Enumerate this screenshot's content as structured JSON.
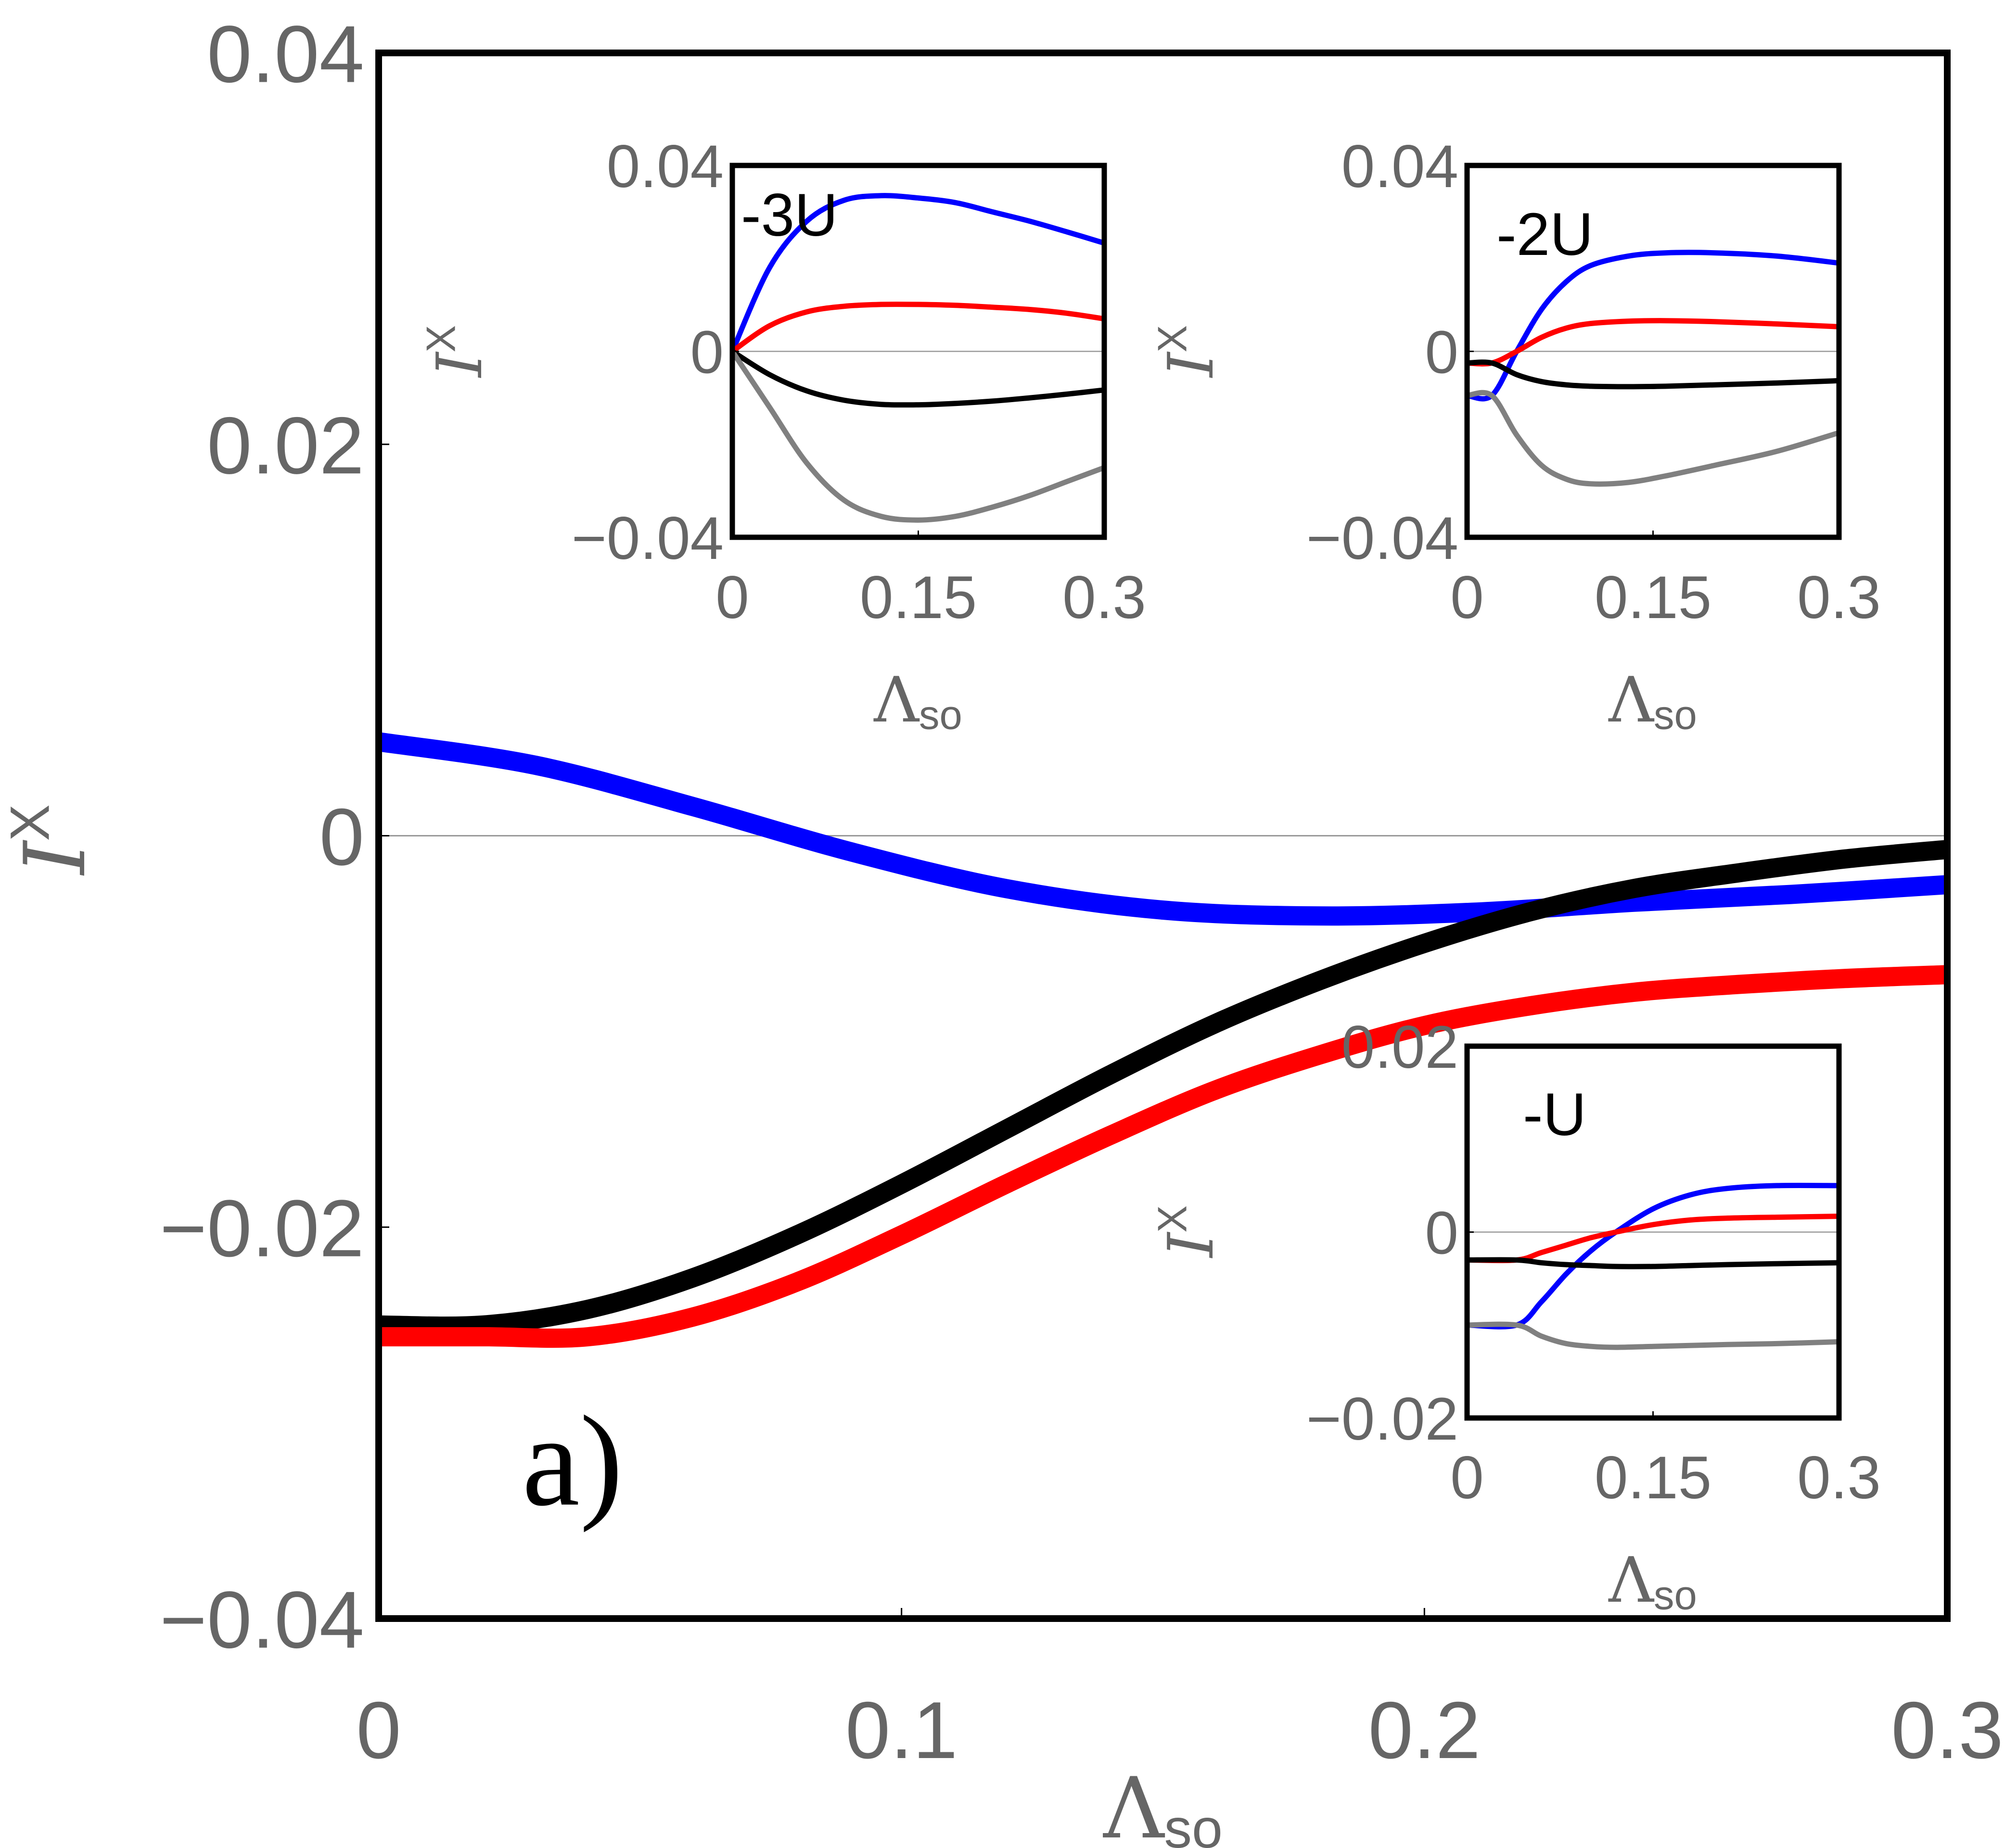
{
  "chart_data": [
    {
      "type": "line",
      "panel": "main",
      "annotation": "a)",
      "xlabel": "Λ",
      "xlabel_sub": "so",
      "ylabel": "I",
      "ylabel_sup": "X",
      "xlim": [
        0,
        0.3
      ],
      "ylim": [
        -0.04,
        0.04
      ],
      "xticks": [
        0,
        0.1,
        0.2,
        0.3
      ],
      "xtick_labels": [
        "0",
        "0.1",
        "0.2",
        "0.3"
      ],
      "yticks": [
        -0.04,
        -0.02,
        0,
        0.02,
        0.04
      ],
      "ytick_labels": [
        "−0.04",
        "−0.02",
        "0",
        "0.02",
        "0.04"
      ],
      "zero_line": true,
      "series": [
        {
          "name": "blue",
          "color": "#0000ff",
          "x": [
            0,
            0.03,
            0.06,
            0.09,
            0.12,
            0.15,
            0.18,
            0.21,
            0.24,
            0.27,
            0.3
          ],
          "y": [
            0.0048,
            0.0036,
            0.0015,
            -0.0008,
            -0.0027,
            -0.0038,
            -0.0041,
            -0.0039,
            -0.0034,
            -0.003,
            -0.0025
          ]
        },
        {
          "name": "black",
          "color": "#000000",
          "x": [
            0,
            0.02,
            0.04,
            0.06,
            0.08,
            0.1,
            0.12,
            0.14,
            0.16,
            0.18,
            0.2,
            0.22,
            0.24,
            0.26,
            0.28,
            0.3
          ],
          "y": [
            -0.025,
            -0.025,
            -0.0242,
            -0.0226,
            -0.0204,
            -0.0178,
            -0.015,
            -0.0122,
            -0.0096,
            -0.0074,
            -0.0055,
            -0.0039,
            -0.0027,
            -0.0019,
            -0.0012,
            -0.0007
          ]
        },
        {
          "name": "red",
          "color": "#ff0000",
          "x": [
            0,
            0.02,
            0.04,
            0.06,
            0.08,
            0.1,
            0.12,
            0.14,
            0.16,
            0.18,
            0.2,
            0.22,
            0.24,
            0.26,
            0.28,
            0.3
          ],
          "y": [
            -0.0256,
            -0.0256,
            -0.0256,
            -0.0246,
            -0.0228,
            -0.0204,
            -0.0178,
            -0.0153,
            -0.013,
            -0.0112,
            -0.0097,
            -0.0087,
            -0.008,
            -0.0076,
            -0.0073,
            -0.0071
          ]
        }
      ]
    },
    {
      "type": "line",
      "panel": "inset-3U",
      "annotation": "-3U",
      "xlabel": "Λ",
      "xlabel_sub": "so",
      "ylabel": "I",
      "ylabel_sup": "X",
      "xlim": [
        0,
        0.3
      ],
      "ylim": [
        -0.04,
        0.04
      ],
      "xticks": [
        0,
        0.15,
        0.3
      ],
      "xtick_labels": [
        "0",
        "0.15",
        "0.3"
      ],
      "yticks": [
        -0.04,
        0,
        0.04
      ],
      "ytick_labels": [
        "−0.04",
        "0",
        "0.04"
      ],
      "zero_line": true,
      "series": [
        {
          "name": "blue",
          "color": "#0000ff",
          "x": [
            0,
            0.03,
            0.06,
            0.09,
            0.12,
            0.15,
            0.18,
            0.21,
            0.24,
            0.27,
            0.3
          ],
          "y": [
            0,
            0.018,
            0.028,
            0.0325,
            0.0335,
            0.033,
            0.032,
            0.03,
            0.028,
            0.0257,
            0.0233
          ]
        },
        {
          "name": "red",
          "color": "#ff0000",
          "x": [
            0,
            0.03,
            0.06,
            0.09,
            0.12,
            0.15,
            0.18,
            0.21,
            0.24,
            0.27,
            0.3
          ],
          "y": [
            0,
            0.0055,
            0.0085,
            0.0097,
            0.0101,
            0.0101,
            0.0099,
            0.0095,
            0.009,
            0.0082,
            0.007
          ]
        },
        {
          "name": "black",
          "color": "#000000",
          "x": [
            0,
            0.03,
            0.06,
            0.09,
            0.12,
            0.15,
            0.18,
            0.21,
            0.24,
            0.27,
            0.3
          ],
          "y": [
            0,
            -0.005,
            -0.0085,
            -0.0105,
            -0.0114,
            -0.0115,
            -0.0112,
            -0.0107,
            -0.01,
            -0.0092,
            -0.0083
          ]
        },
        {
          "name": "gray",
          "color": "#808080",
          "x": [
            0,
            0.03,
            0.06,
            0.09,
            0.12,
            0.15,
            0.18,
            0.21,
            0.24,
            0.27,
            0.3
          ],
          "y": [
            0,
            -0.012,
            -0.024,
            -0.032,
            -0.0355,
            -0.0363,
            -0.0355,
            -0.0335,
            -0.031,
            -0.028,
            -0.025
          ]
        }
      ]
    },
    {
      "type": "line",
      "panel": "inset-2U",
      "annotation": "-2U",
      "xlabel": "Λ",
      "xlabel_sub": "so",
      "ylabel": "I",
      "ylabel_sup": "X",
      "xlim": [
        0,
        0.3
      ],
      "ylim": [
        -0.04,
        0.04
      ],
      "xticks": [
        0,
        0.15,
        0.3
      ],
      "xtick_labels": [
        "0",
        "0.15",
        "0.3"
      ],
      "yticks": [
        -0.04,
        0,
        0.04
      ],
      "ytick_labels": [
        "−0.04",
        "0",
        "0.04"
      ],
      "zero_line": true,
      "series": [
        {
          "name": "blue",
          "color": "#0000ff",
          "x": [
            0,
            0.02,
            0.04,
            0.06,
            0.08,
            0.1,
            0.13,
            0.16,
            0.2,
            0.25,
            0.3
          ],
          "y": [
            -0.0095,
            -0.0095,
            0.0,
            0.009,
            0.015,
            0.0185,
            0.0205,
            0.0212,
            0.0212,
            0.0205,
            0.019
          ]
        },
        {
          "name": "red",
          "color": "#ff0000",
          "x": [
            0,
            0.02,
            0.04,
            0.06,
            0.08,
            0.1,
            0.13,
            0.16,
            0.2,
            0.25,
            0.3
          ],
          "y": [
            -0.0025,
            -0.0025,
            0.0,
            0.003,
            0.005,
            0.006,
            0.0065,
            0.0066,
            0.0064,
            0.0059,
            0.0053
          ]
        },
        {
          "name": "black",
          "color": "#000000",
          "x": [
            0,
            0.02,
            0.04,
            0.06,
            0.08,
            0.1,
            0.13,
            0.16,
            0.2,
            0.25,
            0.3
          ],
          "y": [
            -0.0025,
            -0.0025,
            -0.005,
            -0.0065,
            -0.0072,
            -0.0075,
            -0.0076,
            -0.0075,
            -0.0072,
            -0.0068,
            -0.0063
          ]
        },
        {
          "name": "gray",
          "color": "#808080",
          "x": [
            0,
            0.02,
            0.04,
            0.06,
            0.08,
            0.1,
            0.13,
            0.16,
            0.2,
            0.25,
            0.3
          ],
          "y": [
            -0.0095,
            -0.0095,
            -0.018,
            -0.0245,
            -0.0275,
            -0.0285,
            -0.0282,
            -0.0268,
            -0.0245,
            -0.0215,
            -0.0175
          ]
        }
      ]
    },
    {
      "type": "line",
      "panel": "inset-U",
      "annotation": "-U",
      "xlabel": "Λ",
      "xlabel_sub": "so",
      "ylabel": "I",
      "ylabel_sup": "X",
      "xlim": [
        0,
        0.3
      ],
      "ylim": [
        -0.02,
        0.02
      ],
      "xticks": [
        0,
        0.15,
        0.3
      ],
      "xtick_labels": [
        "0",
        "0.15",
        "0.3"
      ],
      "yticks": [
        -0.02,
        0,
        0.02
      ],
      "ytick_labels": [
        "−0.02",
        "0",
        "0.02"
      ],
      "zero_line": true,
      "series": [
        {
          "name": "blue",
          "color": "#0000ff",
          "x": [
            0,
            0.04,
            0.06,
            0.08,
            0.1,
            0.12,
            0.15,
            0.18,
            0.21,
            0.25,
            0.3
          ],
          "y": [
            -0.01,
            -0.01,
            -0.0075,
            -0.0045,
            -0.002,
            0.0,
            0.0025,
            0.004,
            0.0047,
            0.005,
            0.005
          ]
        },
        {
          "name": "red",
          "color": "#ff0000",
          "x": [
            0,
            0.04,
            0.06,
            0.08,
            0.1,
            0.12,
            0.15,
            0.18,
            0.21,
            0.25,
            0.3
          ],
          "y": [
            -0.003,
            -0.003,
            -0.0022,
            -0.0014,
            -0.0006,
            0.0,
            0.0008,
            0.0013,
            0.0015,
            0.0016,
            0.0017
          ]
        },
        {
          "name": "black",
          "color": "#000000",
          "x": [
            0,
            0.04,
            0.06,
            0.08,
            0.1,
            0.12,
            0.15,
            0.18,
            0.21,
            0.25,
            0.3
          ],
          "y": [
            -0.003,
            -0.003,
            -0.0033,
            -0.0035,
            -0.0036,
            -0.0037,
            -0.0037,
            -0.0036,
            -0.0035,
            -0.0034,
            -0.0033
          ]
        },
        {
          "name": "gray",
          "color": "#808080",
          "x": [
            0,
            0.04,
            0.06,
            0.08,
            0.1,
            0.12,
            0.15,
            0.18,
            0.21,
            0.25,
            0.3
          ],
          "y": [
            -0.01,
            -0.01,
            -0.0112,
            -0.012,
            -0.0123,
            -0.0124,
            -0.0123,
            -0.0122,
            -0.0121,
            -0.012,
            -0.0118
          ]
        }
      ]
    }
  ]
}
